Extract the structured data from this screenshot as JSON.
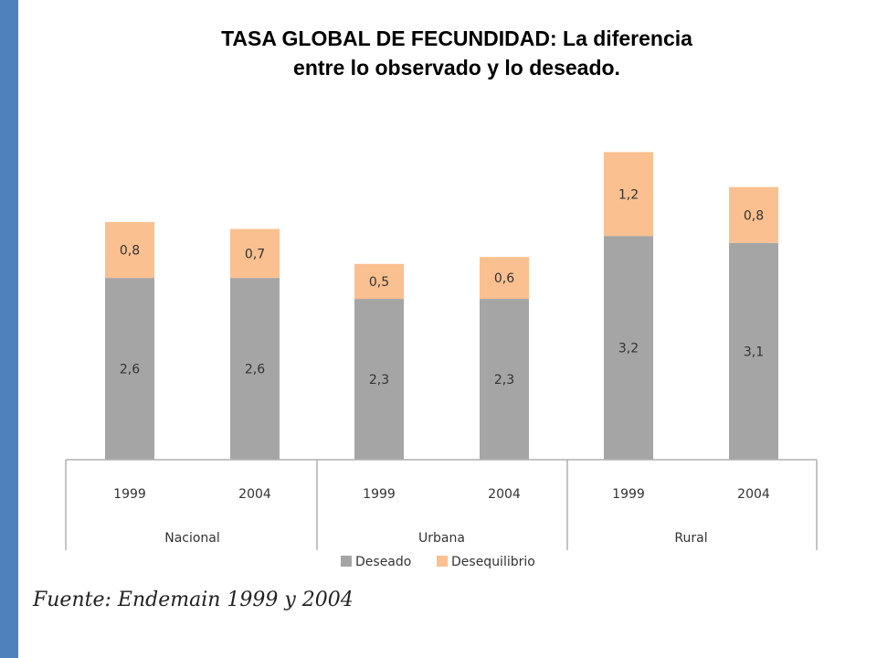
{
  "title": {
    "line1": "TASA GLOBAL DE FECUNDIDAD: La diferencia",
    "line2": "entre lo observado y lo deseado."
  },
  "source": "Fuente: Endemain 1999 y 2004",
  "colors": {
    "accent_bar": "#4f81bd",
    "deseado": "#a5a5a5",
    "desequilibrio": "#fac090"
  },
  "chart_data": {
    "type": "bar",
    "stacked": true,
    "categories": [
      "1999",
      "2004",
      "1999",
      "2004",
      "1999",
      "2004"
    ],
    "groups": [
      {
        "label": "Nacional",
        "span": [
          0,
          1
        ]
      },
      {
        "label": "Urbana",
        "span": [
          2,
          3
        ]
      },
      {
        "label": "Rural",
        "span": [
          4,
          5
        ]
      }
    ],
    "series": [
      {
        "name": "Deseado",
        "values": [
          2.6,
          2.6,
          2.3,
          2.3,
          3.2,
          3.1
        ],
        "labels": [
          "2,6",
          "2,6",
          "2,3",
          "2,3",
          "3,2",
          "3,1"
        ]
      },
      {
        "name": "Desequilibrio",
        "values": [
          0.8,
          0.7,
          0.5,
          0.6,
          1.2,
          0.8
        ],
        "labels": [
          "0,8",
          "0,7",
          "0,5",
          "0,6",
          "1,2",
          "0,8"
        ]
      }
    ],
    "ylim": [
      0,
      4.4
    ],
    "legend_position": "bottom",
    "grid": false
  }
}
